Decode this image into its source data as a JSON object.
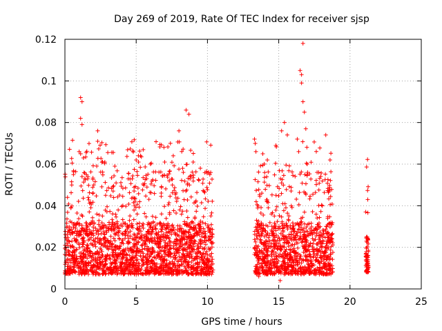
{
  "chart_data": {
    "type": "scatter",
    "title": "Day 269 of 2019, Rate Of TEC Index for receiver sjsp",
    "xlabel": "GPS time / hours",
    "ylabel": "ROTI / TECUs",
    "xlim": [
      0,
      25
    ],
    "ylim": [
      0,
      0.12
    ],
    "xticks": [
      0,
      5,
      10,
      15,
      20,
      25
    ],
    "yticks": [
      0,
      0.02,
      0.04,
      0.06,
      0.08,
      0.1,
      0.12
    ],
    "xtick_labels": [
      "0",
      "5",
      "10",
      "15",
      "20",
      "25"
    ],
    "ytick_labels": [
      "0",
      "0.02",
      "0.04",
      "0.06",
      "0.08",
      "0.1",
      "0.12"
    ],
    "grid": true,
    "marker": "+",
    "color": "#ff0000",
    "series": [
      {
        "name": "ROTI",
        "segments": [
          {
            "x_range": [
              0.0,
              10.4
            ],
            "typical_range": [
              0.007,
              0.032
            ]
          },
          {
            "x_range": [
              13.3,
              18.8
            ],
            "typical_range": [
              0.007,
              0.032
            ]
          },
          {
            "x_range": [
              21.1,
              21.3
            ],
            "typical_range": [
              0.008,
              0.025
            ]
          }
        ],
        "highlights": [
          {
            "x": 1.1,
            "y": 0.092
          },
          {
            "x": 1.2,
            "y": 0.09
          },
          {
            "x": 1.1,
            "y": 0.082
          },
          {
            "x": 1.2,
            "y": 0.079
          },
          {
            "x": 1.0,
            "y": 0.066
          },
          {
            "x": 1.3,
            "y": 0.063
          },
          {
            "x": 0.6,
            "y": 0.055
          },
          {
            "x": 2.3,
            "y": 0.076
          },
          {
            "x": 2.3,
            "y": 0.071
          },
          {
            "x": 2.8,
            "y": 0.061
          },
          {
            "x": 3.5,
            "y": 0.059
          },
          {
            "x": 5.0,
            "y": 0.062
          },
          {
            "x": 5.3,
            "y": 0.064
          },
          {
            "x": 6.0,
            "y": 0.06
          },
          {
            "x": 7.0,
            "y": 0.061
          },
          {
            "x": 7.4,
            "y": 0.07
          },
          {
            "x": 7.6,
            "y": 0.064
          },
          {
            "x": 8.0,
            "y": 0.076
          },
          {
            "x": 8.5,
            "y": 0.086
          },
          {
            "x": 8.7,
            "y": 0.084
          },
          {
            "x": 9.0,
            "y": 0.061
          },
          {
            "x": 9.5,
            "y": 0.058
          },
          {
            "x": 13.3,
            "y": 0.072
          },
          {
            "x": 13.4,
            "y": 0.066
          },
          {
            "x": 14.2,
            "y": 0.062
          },
          {
            "x": 14.8,
            "y": 0.069
          },
          {
            "x": 15.2,
            "y": 0.076
          },
          {
            "x": 15.4,
            "y": 0.08
          },
          {
            "x": 15.6,
            "y": 0.074
          },
          {
            "x": 16.3,
            "y": 0.072
          },
          {
            "x": 16.5,
            "y": 0.105
          },
          {
            "x": 16.6,
            "y": 0.103
          },
          {
            "x": 16.6,
            "y": 0.099
          },
          {
            "x": 16.7,
            "y": 0.118
          },
          {
            "x": 16.7,
            "y": 0.09
          },
          {
            "x": 16.8,
            "y": 0.085
          },
          {
            "x": 16.9,
            "y": 0.077
          },
          {
            "x": 16.4,
            "y": 0.066
          },
          {
            "x": 17.0,
            "y": 0.06
          },
          {
            "x": 18.3,
            "y": 0.074
          },
          {
            "x": 18.6,
            "y": 0.062
          },
          {
            "x": 15.1,
            "y": 0.004
          },
          {
            "x": 13.6,
            "y": 0.006
          },
          {
            "x": 21.2,
            "y": 0.025
          },
          {
            "x": 21.2,
            "y": 0.008
          }
        ]
      }
    ]
  }
}
